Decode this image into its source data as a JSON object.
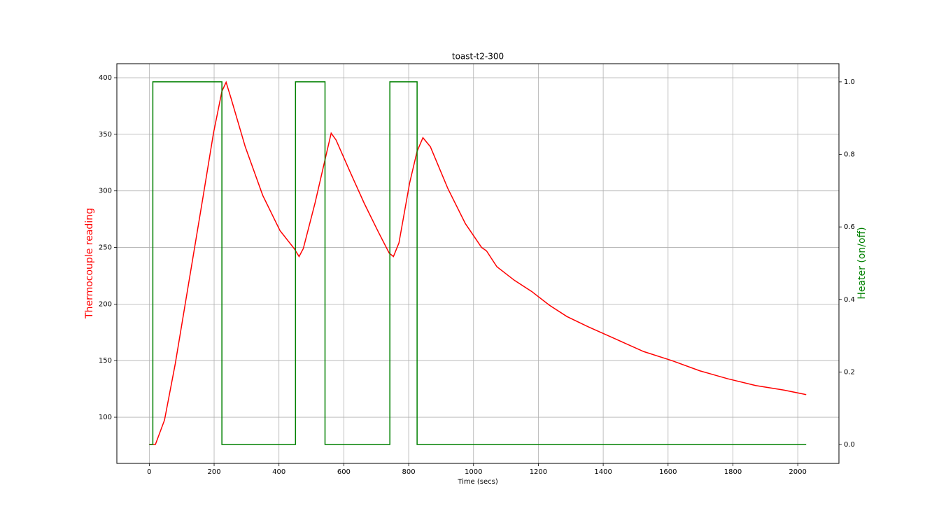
{
  "chart_data": {
    "type": "line",
    "title": "toast-t2-300",
    "x_label": "Time (secs)",
    "y_label": "Thermocouple reading",
    "y2_label": "Heater (on/off)",
    "xlim": [
      -100,
      2127
    ],
    "ylim": [
      59.2,
      412.4
    ],
    "y2lim": [
      -0.052,
      1.05
    ],
    "xticks": [
      0,
      200,
      400,
      600,
      800,
      1000,
      1200,
      1400,
      1600,
      1800,
      2000
    ],
    "yticks": [
      100,
      150,
      200,
      250,
      300,
      350,
      400
    ],
    "y2ticks": [
      {
        "value": 0,
        "label": "0.0"
      },
      {
        "value": 0.2,
        "label": "0.2"
      },
      {
        "value": 0.4,
        "label": "0.4"
      },
      {
        "value": 0.6,
        "label": "0.6"
      },
      {
        "value": 0.8,
        "label": "0.8"
      },
      {
        "value": 1,
        "label": "1.0"
      }
    ],
    "grid": true,
    "series": [
      {
        "name": "Thermocouple reading",
        "color": "#ff0000",
        "x": [
          0,
          19,
          47,
          80,
          123,
          166,
          198,
          224,
          237,
          252,
          296,
          350,
          403,
          447,
          462,
          475,
          511,
          544,
          561,
          576,
          619,
          663,
          706,
          740,
          753,
          770,
          803,
          826,
          844,
          867,
          921,
          975,
          1025,
          1040,
          1072,
          1126,
          1180,
          1234,
          1288,
          1353,
          1439,
          1525,
          1612,
          1698,
          1784,
          1870,
          1957,
          2026
        ],
        "values": [
          76,
          76,
          97.5,
          147,
          221,
          295,
          351,
          388,
          396,
          382,
          339,
          296,
          265,
          249,
          242,
          249,
          289,
          330,
          351,
          345,
          317,
          289,
          264,
          245,
          242,
          254,
          307,
          335,
          347,
          339,
          302,
          271,
          250,
          247,
          233,
          221,
          211,
          199,
          189,
          180,
          169,
          158,
          150,
          141,
          134,
          128,
          124,
          120
        ]
      },
      {
        "name": "Heater (on/off)",
        "color": "#008000",
        "axis": "y2",
        "x": [
          0,
          11,
          11,
          224,
          224,
          451,
          451,
          542,
          542,
          742,
          742,
          826,
          826,
          2026
        ],
        "values": [
          0,
          0,
          1,
          1,
          0,
          0,
          1,
          1,
          0,
          0,
          1,
          1,
          0,
          0
        ]
      }
    ]
  }
}
